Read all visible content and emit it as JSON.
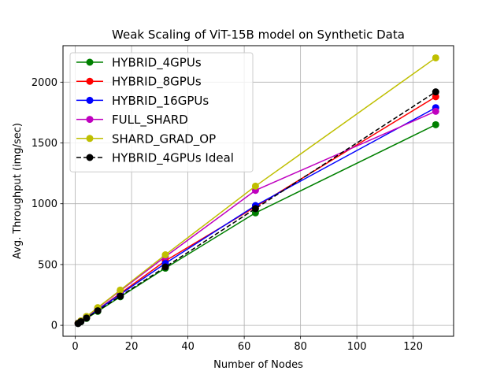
{
  "chart_data": {
    "type": "line",
    "title": "Weak Scaling of ViT-15B model on Synthetic Data",
    "xlabel": "Number of Nodes",
    "ylabel": "Avg. Throughput (img/sec)",
    "xlim": [
      -4.35,
      134.35
    ],
    "ylim": [
      -90,
      2300
    ],
    "xticks": [
      0,
      20,
      40,
      60,
      80,
      100,
      120
    ],
    "yticks": [
      0,
      500,
      1000,
      1500,
      2000
    ],
    "grid": true,
    "legend_position": "top-left",
    "x": [
      1,
      2,
      4,
      8,
      16,
      32,
      64,
      128
    ],
    "series": [
      {
        "name": "HYBRID_4GPUs",
        "color": "#008000",
        "dashed": false,
        "values": [
          15,
          29,
          57,
          115,
          235,
          470,
          925,
          1650
        ]
      },
      {
        "name": "HYBRID_8GPUs",
        "color": "#ff0000",
        "dashed": false,
        "values": [
          16,
          33,
          66,
          130,
          262,
          530,
          975,
          1880
        ]
      },
      {
        "name": "HYBRID_16GPUs",
        "color": "#0000ff",
        "dashed": false,
        "values": [
          16,
          32,
          64,
          128,
          255,
          510,
          985,
          1790
        ]
      },
      {
        "name": "FULL_SHARD",
        "color": "#bf00bf",
        "dashed": false,
        "values": [
          18,
          36,
          72,
          143,
          285,
          565,
          1110,
          1760
        ]
      },
      {
        "name": "SHARD_GRAD_OP",
        "color": "#bfbf00",
        "dashed": false,
        "values": [
          18,
          37,
          73,
          146,
          290,
          580,
          1145,
          2200
        ]
      },
      {
        "name": "HYBRID_4GPUs Ideal",
        "color": "#000000",
        "dashed": true,
        "values": [
          15,
          30,
          60,
          120,
          240,
          480,
          960,
          1920
        ]
      }
    ]
  }
}
